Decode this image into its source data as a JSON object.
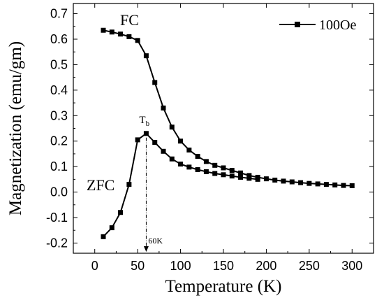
{
  "chart_data": {
    "type": "line",
    "xlabel": "Temperature (K)",
    "ylabel": "Magnetization (emu/gm)",
    "xlim": [
      -25,
      325
    ],
    "ylim": [
      -0.24,
      0.74
    ],
    "x_ticks": [
      0,
      50,
      100,
      150,
      200,
      250,
      300
    ],
    "y_ticks": [
      -0.2,
      -0.1,
      0.0,
      0.1,
      0.2,
      0.3,
      0.4,
      0.5,
      0.6,
      0.7
    ],
    "x_tick_labels": [
      "0",
      "50",
      "100",
      "150",
      "200",
      "250",
      "300"
    ],
    "y_tick_labels": [
      "-0.2",
      "-0.1",
      "0.0",
      "0.1",
      "0.2",
      "0.3",
      "0.4",
      "0.5",
      "0.6",
      "0.7"
    ],
    "grid": false,
    "legend": {
      "position": "top-right",
      "entries": [
        "100Oe"
      ]
    },
    "series": [
      {
        "name": "100Oe",
        "label": "FC",
        "color": "#000000",
        "marker": "square",
        "x": [
          10,
          20,
          30,
          40,
          50,
          60,
          70,
          80,
          90,
          100,
          110,
          120,
          130,
          140,
          150,
          160,
          170,
          180,
          190,
          200,
          210,
          220,
          230,
          240,
          250,
          260,
          270,
          280,
          290,
          300
        ],
        "y": [
          0.635,
          0.628,
          0.62,
          0.61,
          0.595,
          0.535,
          0.43,
          0.33,
          0.255,
          0.2,
          0.165,
          0.14,
          0.12,
          0.105,
          0.095,
          0.085,
          0.075,
          0.065,
          0.058,
          0.052,
          0.047,
          0.043,
          0.04,
          0.037,
          0.034,
          0.032,
          0.03,
          0.028,
          0.026,
          0.025
        ]
      },
      {
        "name": "",
        "label": "ZFC",
        "color": "#000000",
        "marker": "square",
        "x": [
          10,
          20,
          30,
          40,
          50,
          60,
          70,
          80,
          90,
          100,
          110,
          120,
          130,
          140,
          150,
          160,
          170,
          180,
          190
        ],
        "y": [
          -0.175,
          -0.14,
          -0.08,
          0.03,
          0.205,
          0.23,
          0.195,
          0.16,
          0.13,
          0.11,
          0.098,
          0.088,
          0.08,
          0.073,
          0.068,
          0.063,
          0.058,
          0.054,
          0.05
        ]
      }
    ],
    "annotations": {
      "fc_label": "FC",
      "zfc_label": "ZFC",
      "tb_main": "T",
      "tb_sub": "b",
      "tb_temp_label": "60K",
      "tb_x": 60,
      "tb_y": 0.23
    }
  }
}
